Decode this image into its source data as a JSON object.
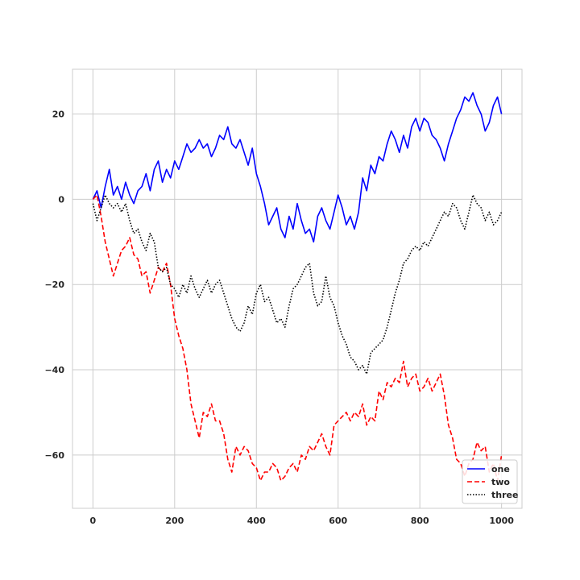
{
  "chart_data": {
    "type": "line",
    "title": "",
    "xlabel": "",
    "ylabel": "",
    "xlim": [
      -50,
      1050
    ],
    "ylim": [
      -72.5,
      30.5
    ],
    "xticks": [
      0,
      200,
      400,
      600,
      800,
      1000
    ],
    "yticks": [
      20,
      0,
      -20,
      -40,
      -60
    ],
    "grid": true,
    "legend_position": "lower-right",
    "series": [
      {
        "name": "one",
        "color": "#0000ff",
        "linestyle": "solid",
        "x": [
          0,
          10,
          20,
          30,
          40,
          50,
          60,
          70,
          80,
          90,
          100,
          110,
          120,
          130,
          140,
          150,
          160,
          170,
          180,
          190,
          200,
          210,
          220,
          230,
          240,
          250,
          260,
          270,
          280,
          290,
          300,
          310,
          320,
          330,
          340,
          350,
          360,
          370,
          380,
          390,
          400,
          410,
          420,
          430,
          440,
          450,
          460,
          470,
          480,
          490,
          500,
          510,
          520,
          530,
          540,
          550,
          560,
          570,
          580,
          590,
          600,
          610,
          620,
          630,
          640,
          650,
          660,
          670,
          680,
          690,
          700,
          710,
          720,
          730,
          740,
          750,
          760,
          770,
          780,
          790,
          800,
          810,
          820,
          830,
          840,
          850,
          860,
          870,
          880,
          890,
          900,
          910,
          920,
          930,
          940,
          950,
          960,
          970,
          980,
          990,
          1000
        ],
        "values": [
          0,
          2,
          -2,
          3,
          7,
          1,
          3,
          0,
          4,
          1,
          -1,
          2,
          3,
          6,
          2,
          7,
          9,
          4,
          7,
          5,
          9,
          7,
          10,
          13,
          11,
          12,
          14,
          12,
          13,
          10,
          12,
          15,
          14,
          17,
          13,
          12,
          14,
          11,
          8,
          12,
          6,
          3,
          -1,
          -6,
          -4,
          -2,
          -7,
          -9,
          -4,
          -7,
          -1,
          -5,
          -8,
          -7,
          -10,
          -4,
          -2,
          -5,
          -7,
          -3,
          1,
          -2,
          -6,
          -4,
          -7,
          -3,
          5,
          2,
          8,
          6,
          10,
          9,
          13,
          16,
          14,
          11,
          15,
          12,
          17,
          19,
          16,
          19,
          18,
          15,
          14,
          12,
          9,
          13,
          16,
          19,
          21,
          24,
          23,
          25,
          22,
          20,
          16,
          18,
          22,
          24,
          20
        ]
      },
      {
        "name": "two",
        "color": "#ff0000",
        "linestyle": "dashed",
        "x": [
          0,
          10,
          20,
          30,
          40,
          50,
          60,
          70,
          80,
          90,
          100,
          110,
          120,
          130,
          140,
          150,
          160,
          170,
          180,
          190,
          200,
          210,
          220,
          230,
          240,
          250,
          260,
          270,
          280,
          290,
          300,
          310,
          320,
          330,
          340,
          350,
          360,
          370,
          380,
          390,
          400,
          410,
          420,
          430,
          440,
          450,
          460,
          470,
          480,
          490,
          500,
          510,
          520,
          530,
          540,
          550,
          560,
          570,
          580,
          590,
          600,
          610,
          620,
          630,
          640,
          650,
          660,
          670,
          680,
          690,
          700,
          710,
          720,
          730,
          740,
          750,
          760,
          770,
          780,
          790,
          800,
          810,
          820,
          830,
          840,
          850,
          860,
          870,
          880,
          890,
          900,
          910,
          920,
          930,
          940,
          950,
          960,
          970,
          980,
          990,
          1000
        ],
        "values": [
          0,
          1,
          -4,
          -10,
          -14,
          -18,
          -15,
          -12,
          -11,
          -9,
          -13,
          -14,
          -18,
          -17,
          -22,
          -19,
          -16,
          -17,
          -15,
          -20,
          -28,
          -32,
          -35,
          -40,
          -48,
          -52,
          -56,
          -50,
          -51,
          -48,
          -52,
          -52,
          -55,
          -61,
          -64,
          -58,
          -60,
          -58,
          -59,
          -62,
          -63,
          -66,
          -64,
          -64,
          -62,
          -63,
          -66,
          -65,
          -63,
          -62,
          -64,
          -60,
          -61,
          -58,
          -59,
          -57,
          -55,
          -58,
          -60,
          -53,
          -52,
          -51,
          -50,
          -52,
          -50,
          -51,
          -48,
          -53,
          -51,
          -52,
          -45,
          -47,
          -43,
          -44,
          -42,
          -43,
          -38,
          -44,
          -42,
          -41,
          -45,
          -44,
          -42,
          -45,
          -43,
          -41,
          -46,
          -53,
          -56,
          -61,
          -62,
          -65,
          -62,
          -61,
          -57,
          -59,
          -58,
          -64,
          -62,
          -66,
          -60
        ]
      },
      {
        "name": "three",
        "color": "#000000",
        "linestyle": "dotted",
        "x": [
          0,
          10,
          20,
          30,
          40,
          50,
          60,
          70,
          80,
          90,
          100,
          110,
          120,
          130,
          140,
          150,
          160,
          170,
          180,
          190,
          200,
          210,
          220,
          230,
          240,
          250,
          260,
          270,
          280,
          290,
          300,
          310,
          320,
          330,
          340,
          350,
          360,
          370,
          380,
          390,
          400,
          410,
          420,
          430,
          440,
          450,
          460,
          470,
          480,
          490,
          500,
          510,
          520,
          530,
          540,
          550,
          560,
          570,
          580,
          590,
          600,
          610,
          620,
          630,
          640,
          650,
          660,
          670,
          680,
          690,
          700,
          710,
          720,
          730,
          740,
          750,
          760,
          770,
          780,
          790,
          800,
          810,
          820,
          830,
          840,
          850,
          860,
          870,
          880,
          890,
          900,
          910,
          920,
          930,
          940,
          950,
          960,
          970,
          980,
          990,
          1000
        ],
        "values": [
          -1,
          -5,
          -2,
          1,
          -1,
          -2,
          -1,
          -3,
          -1,
          -5,
          -8,
          -7,
          -10,
          -12,
          -8,
          -10,
          -16,
          -17,
          -16,
          -20,
          -21,
          -23,
          -20,
          -22,
          -18,
          -21,
          -23,
          -21,
          -19,
          -22,
          -20,
          -19,
          -22,
          -25,
          -28,
          -30,
          -31,
          -29,
          -25,
          -27,
          -22,
          -20,
          -24,
          -23,
          -26,
          -29,
          -28,
          -30,
          -25,
          -21,
          -20,
          -18,
          -16,
          -15,
          -22,
          -25,
          -24,
          -18,
          -23,
          -25,
          -29,
          -32,
          -34,
          -37,
          -38,
          -40,
          -39,
          -41,
          -36,
          -35,
          -34,
          -33,
          -30,
          -26,
          -22,
          -19,
          -15,
          -14,
          -12,
          -11,
          -12,
          -10,
          -11,
          -9,
          -7,
          -5,
          -3,
          -4,
          -1,
          -2,
          -5,
          -7,
          -3,
          1,
          -1,
          -2,
          -5,
          -3,
          -6,
          -5,
          -3
        ]
      }
    ]
  }
}
